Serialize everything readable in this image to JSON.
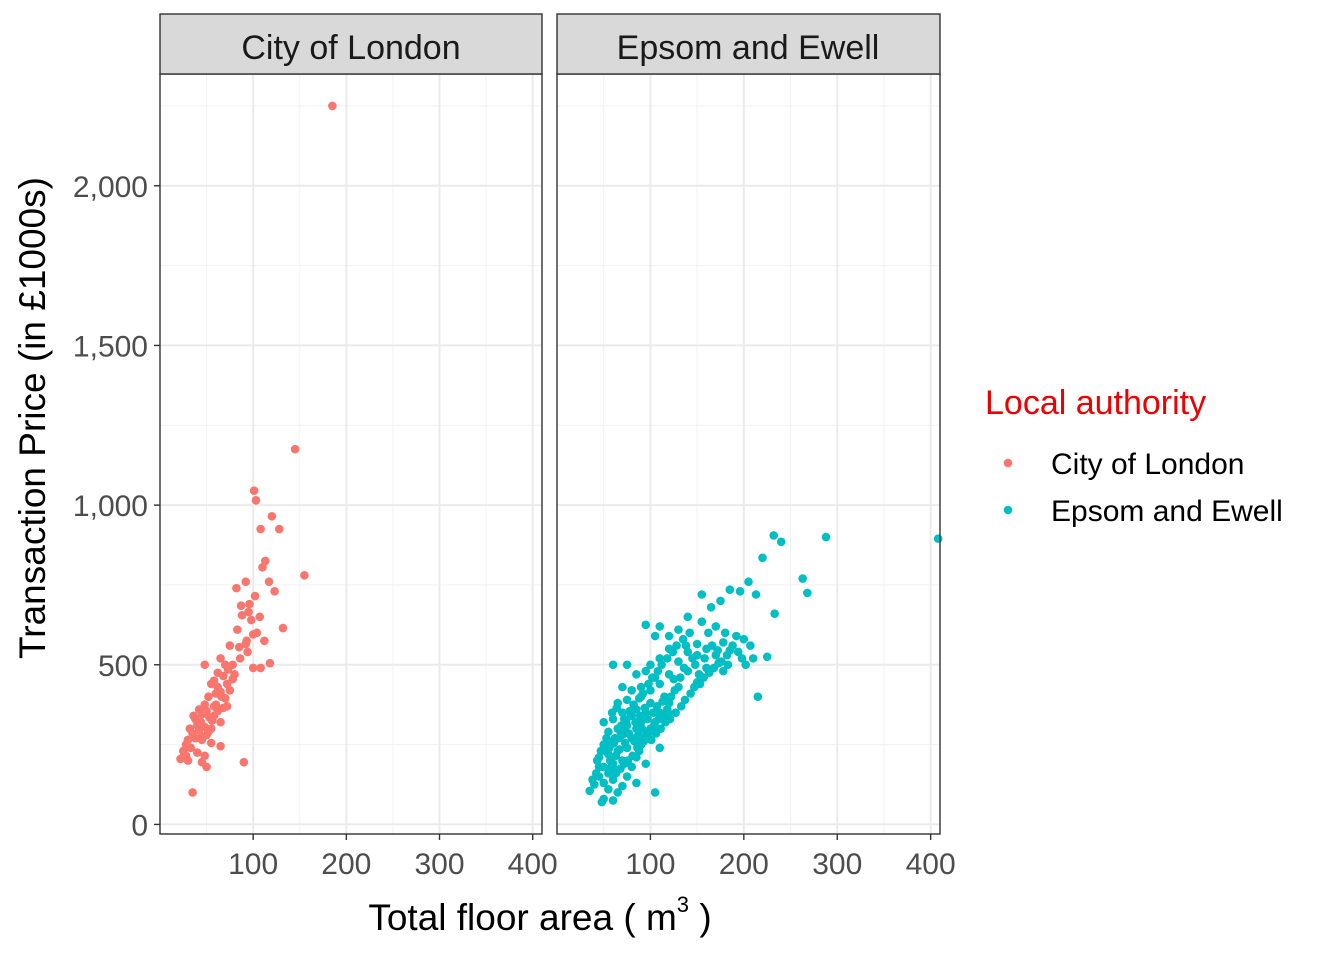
{
  "chart_data": {
    "type": "scatter",
    "facet_by": "Local authority",
    "xlabel": "Total floor area ( m",
    "xlabel_superscript": "3",
    "xlabel_suffix": " )",
    "ylabel": "Transaction Price (in £1000s)",
    "xlim": [
      0,
      410
    ],
    "ylim": [
      -30,
      2350
    ],
    "x_ticks": [
      100,
      200,
      300,
      400
    ],
    "x_tick_labels": [
      "100",
      "200",
      "300",
      "400"
    ],
    "y_ticks": [
      0,
      500,
      1000,
      1500,
      2000
    ],
    "y_tick_labels": [
      "0",
      "500",
      "1,000",
      "1,500",
      "2,000"
    ],
    "grid": true,
    "legend": {
      "title": "Local authority",
      "title_color": "#ee0000",
      "placement": "right",
      "entries": [
        {
          "label": "City of London",
          "color": "#f8766d"
        },
        {
          "label": "Epsom and Ewell",
          "color": "#00bfc4"
        }
      ]
    },
    "panels": [
      {
        "strip_label": "City of London",
        "series": "City of London",
        "color": "#f8766d",
        "points": [
          [
            185,
            2250
          ],
          [
            145,
            1175
          ],
          [
            101,
            1045
          ],
          [
            103,
            1015
          ],
          [
            120,
            965
          ],
          [
            128,
            925
          ],
          [
            108,
            925
          ],
          [
            155,
            780
          ],
          [
            92,
            760
          ],
          [
            113,
            825
          ],
          [
            110,
            805
          ],
          [
            117,
            760
          ],
          [
            82,
            740
          ],
          [
            123,
            730
          ],
          [
            102,
            715
          ],
          [
            96,
            690
          ],
          [
            87,
            685
          ],
          [
            95,
            665
          ],
          [
            88,
            655
          ],
          [
            107,
            650
          ],
          [
            132,
            615
          ],
          [
            83,
            610
          ],
          [
            100,
            595
          ],
          [
            112,
            575
          ],
          [
            92,
            565
          ],
          [
            85,
            555
          ],
          [
            75,
            560
          ],
          [
            94,
            540
          ],
          [
            118,
            505
          ],
          [
            108,
            490
          ],
          [
            100,
            490
          ],
          [
            65,
            520
          ],
          [
            70,
            500
          ],
          [
            73,
            485
          ],
          [
            62,
            475
          ],
          [
            80,
            470
          ],
          [
            68,
            465
          ],
          [
            78,
            455
          ],
          [
            58,
            450
          ],
          [
            48,
            500
          ],
          [
            55,
            440
          ],
          [
            75,
            420
          ],
          [
            65,
            415
          ],
          [
            60,
            410
          ],
          [
            52,
            400
          ],
          [
            70,
            395
          ],
          [
            48,
            375
          ],
          [
            72,
            370
          ],
          [
            68,
            365
          ],
          [
            42,
            360
          ],
          [
            50,
            355
          ],
          [
            45,
            345
          ],
          [
            58,
            340
          ],
          [
            53,
            335
          ],
          [
            65,
            320
          ],
          [
            40,
            310
          ],
          [
            48,
            305
          ],
          [
            55,
            300
          ],
          [
            32,
            300
          ],
          [
            42,
            295
          ],
          [
            35,
            285
          ],
          [
            50,
            280
          ],
          [
            45,
            275
          ],
          [
            38,
            270
          ],
          [
            30,
            265
          ],
          [
            55,
            255
          ],
          [
            28,
            250
          ],
          [
            65,
            245
          ],
          [
            33,
            240
          ],
          [
            25,
            230
          ],
          [
            40,
            225
          ],
          [
            48,
            215
          ],
          [
            22,
            205
          ],
          [
            30,
            200
          ],
          [
            45,
            195
          ],
          [
            50,
            180
          ],
          [
            90,
            195
          ],
          [
            60,
            375
          ],
          [
            62,
            430
          ],
          [
            38,
            330
          ],
          [
            28,
            215
          ],
          [
            35,
            100
          ],
          [
            45,
            265
          ],
          [
            56,
            325
          ],
          [
            72,
            440
          ],
          [
            86,
            520
          ],
          [
            93,
            575
          ],
          [
            104,
            600
          ],
          [
            98,
            640
          ],
          [
            66,
            400
          ],
          [
            78,
            500
          ],
          [
            58,
            370
          ],
          [
            44,
            320
          ],
          [
            36,
            340
          ],
          [
            26,
            220
          ],
          [
            52,
            290
          ],
          [
            62,
            355
          ]
        ]
      },
      {
        "strip_label": "Epsom and Ewell",
        "series": "Epsom and Ewell",
        "color": "#00bfc4",
        "points": [
          [
            408,
            895
          ],
          [
            288,
            900
          ],
          [
            232,
            905
          ],
          [
            240,
            885
          ],
          [
            263,
            770
          ],
          [
            268,
            725
          ],
          [
            220,
            835
          ],
          [
            233,
            660
          ],
          [
            205,
            760
          ],
          [
            213,
            720
          ],
          [
            185,
            735
          ],
          [
            196,
            730
          ],
          [
            175,
            700
          ],
          [
            155,
            720
          ],
          [
            165,
            680
          ],
          [
            140,
            650
          ],
          [
            155,
            635
          ],
          [
            170,
            620
          ],
          [
            180,
            600
          ],
          [
            142,
            600
          ],
          [
            130,
            610
          ],
          [
            120,
            590
          ],
          [
            105,
            590
          ],
          [
            95,
            625
          ],
          [
            120,
            550
          ],
          [
            150,
            565
          ],
          [
            162,
            600
          ],
          [
            110,
            620
          ],
          [
            178,
            570
          ],
          [
            192,
            590
          ],
          [
            200,
            580
          ],
          [
            185,
            545
          ],
          [
            207,
            560
          ],
          [
            215,
            400
          ],
          [
            225,
            525
          ],
          [
            150,
            530
          ],
          [
            170,
            530
          ],
          [
            140,
            540
          ],
          [
            110,
            520
          ],
          [
            130,
            510
          ],
          [
            100,
            500
          ],
          [
            75,
            500
          ],
          [
            60,
            500
          ],
          [
            95,
            480
          ],
          [
            120,
            470
          ],
          [
            85,
            470
          ],
          [
            105,
            460
          ],
          [
            140,
            480
          ],
          [
            125,
            455
          ],
          [
            110,
            440
          ],
          [
            90,
            430
          ],
          [
            100,
            420
          ],
          [
            70,
            430
          ],
          [
            80,
            420
          ],
          [
            130,
            430
          ],
          [
            150,
            445
          ],
          [
            160,
            490
          ],
          [
            115,
            400
          ],
          [
            90,
            400
          ],
          [
            75,
            390
          ],
          [
            65,
            380
          ],
          [
            100,
            380
          ],
          [
            120,
            380
          ],
          [
            85,
            360
          ],
          [
            70,
            350
          ],
          [
            95,
            350
          ],
          [
            110,
            350
          ],
          [
            80,
            340
          ],
          [
            60,
            330
          ],
          [
            50,
            320
          ],
          [
            90,
            320
          ],
          [
            105,
            320
          ],
          [
            75,
            310
          ],
          [
            65,
            300
          ],
          [
            85,
            300
          ],
          [
            100,
            300
          ],
          [
            55,
            290
          ],
          [
            70,
            280
          ],
          [
            95,
            275
          ],
          [
            80,
            270
          ],
          [
            60,
            260
          ],
          [
            50,
            250
          ],
          [
            90,
            250
          ],
          [
            75,
            240
          ],
          [
            65,
            230
          ],
          [
            110,
            240
          ],
          [
            55,
            220
          ],
          [
            45,
            210
          ],
          [
            85,
            210
          ],
          [
            70,
            200
          ],
          [
            60,
            190
          ],
          [
            50,
            180
          ],
          [
            80,
            180
          ],
          [
            95,
            190
          ],
          [
            65,
            170
          ],
          [
            55,
            160
          ],
          [
            45,
            150
          ],
          [
            75,
            150
          ],
          [
            60,
            140
          ],
          [
            50,
            130
          ],
          [
            40,
            125
          ],
          [
            85,
            130
          ],
          [
            70,
            120
          ],
          [
            55,
            110
          ],
          [
            35,
            105
          ],
          [
            65,
            100
          ],
          [
            105,
            100
          ],
          [
            50,
            80
          ],
          [
            48,
            70
          ],
          [
            60,
            75
          ],
          [
            42,
            160
          ],
          [
            38,
            140
          ],
          [
            45,
            180
          ],
          [
            52,
            230
          ],
          [
            58,
            250
          ],
          [
            62,
            270
          ],
          [
            68,
            290
          ],
          [
            72,
            330
          ],
          [
            78,
            355
          ],
          [
            82,
            375
          ],
          [
            88,
            395
          ],
          [
            92,
            410
          ],
          [
            98,
            440
          ],
          [
            102,
            460
          ],
          [
            108,
            480
          ],
          [
            112,
            500
          ],
          [
            118,
            520
          ],
          [
            124,
            540
          ],
          [
            128,
            560
          ],
          [
            135,
            580
          ],
          [
            138,
            560
          ],
          [
            145,
            520
          ],
          [
            148,
            500
          ],
          [
            152,
            470
          ],
          [
            158,
            520
          ],
          [
            160,
            550
          ],
          [
            166,
            560
          ],
          [
            172,
            545
          ],
          [
            176,
            510
          ],
          [
            182,
            530
          ],
          [
            188,
            560
          ],
          [
            194,
            540
          ],
          [
            198,
            520
          ],
          [
            202,
            500
          ],
          [
            210,
            520
          ],
          [
            118,
            360
          ],
          [
            122,
            400
          ],
          [
            126,
            420
          ],
          [
            132,
            460
          ],
          [
            136,
            490
          ],
          [
            83,
            260
          ],
          [
            87,
            280
          ],
          [
            91,
            300
          ],
          [
            97,
            330
          ],
          [
            103,
            350
          ],
          [
            107,
            370
          ],
          [
            113,
            385
          ],
          [
            63,
            215
          ],
          [
            67,
            235
          ],
          [
            73,
            255
          ],
          [
            77,
            285
          ],
          [
            57,
            200
          ],
          [
            53,
            270
          ],
          [
            47,
            230
          ],
          [
            43,
            200
          ],
          [
            88,
            230
          ],
          [
            93,
            260
          ],
          [
            99,
            290
          ],
          [
            104,
            310
          ],
          [
            109,
            330
          ],
          [
            114,
            340
          ],
          [
            119,
            350
          ],
          [
            76,
            200
          ],
          [
            81,
            215
          ],
          [
            86,
            240
          ],
          [
            91,
            270
          ],
          [
            96,
            285
          ],
          [
            101,
            265
          ],
          [
            106,
            285
          ],
          [
            111,
            300
          ],
          [
            116,
            320
          ],
          [
            121,
            330
          ],
          [
            127,
            350
          ],
          [
            133,
            370
          ],
          [
            137,
            390
          ],
          [
            143,
            410
          ],
          [
            147,
            430
          ],
          [
            153,
            440
          ],
          [
            157,
            460
          ],
          [
            163,
            475
          ],
          [
            168,
            490
          ],
          [
            173,
            505
          ],
          [
            178,
            480
          ],
          [
            183,
            500
          ],
          [
            59,
            350
          ],
          [
            64,
            365
          ],
          [
            69,
            310
          ],
          [
            74,
            325
          ],
          [
            79,
            345
          ],
          [
            84,
            320
          ],
          [
            89,
            340
          ],
          [
            94,
            365
          ],
          [
            56,
            240
          ],
          [
            61,
            255
          ],
          [
            66,
            270
          ],
          [
            71,
            295
          ],
          [
            58,
            180
          ],
          [
            63,
            160
          ],
          [
            68,
            175
          ],
          [
            72,
            190
          ]
        ]
      }
    ]
  }
}
